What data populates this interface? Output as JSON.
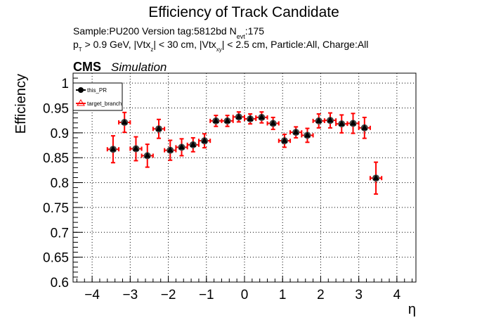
{
  "chart_data": {
    "type": "scatter",
    "title": "Efficiency of Track Candidate",
    "subtitle_line1": {
      "a": "Sample:PU200   Version tag:5812bd  N",
      "sub": "evt",
      "b": ":175"
    },
    "subtitle_line2": {
      "p": "p",
      "p_sub": "T",
      "a": " > 0.9 GeV, |Vtx",
      "z_sub": "z",
      "b": "| < 30 cm, |Vtx",
      "xy_sub": "xy",
      "c": "| < 2.5 cm, Particle:All, Charge:All"
    },
    "experiment_label": "CMS",
    "experiment_sublabel": "Simulation",
    "xlabel": "η",
    "ylabel": "Efficiency",
    "xlim": [
      -4.5,
      4.5
    ],
    "ylim": [
      0.6,
      1.02
    ],
    "x_ticks": [
      "−4",
      "−3",
      "−2",
      "−1",
      "0",
      "1",
      "2",
      "3",
      "4"
    ],
    "y_ticks": [
      "0.6",
      "0.65",
      "0.7",
      "0.75",
      "0.8",
      "0.85",
      "0.9",
      "0.95",
      "1"
    ],
    "grid": true,
    "legend_position": "top-left",
    "legend": [
      {
        "name": "this_PR",
        "marker": "circle",
        "color": "#000000"
      },
      {
        "name": "target_branch",
        "marker": "triangle-open",
        "color": "#ff0000"
      }
    ],
    "x_half_width": 0.15,
    "series": [
      {
        "name": "this_PR",
        "x": [
          -3.45,
          -3.15,
          -2.85,
          -2.55,
          -2.25,
          -1.95,
          -1.65,
          -1.35,
          -1.05,
          -0.75,
          -0.45,
          -0.15,
          0.15,
          0.45,
          0.75,
          1.05,
          1.35,
          1.65,
          1.95,
          2.25,
          2.55,
          2.85,
          3.15,
          3.45
        ],
        "y": [
          0.867,
          0.921,
          0.868,
          0.854,
          0.908,
          0.865,
          0.871,
          0.876,
          0.884,
          0.924,
          0.924,
          0.932,
          0.928,
          0.931,
          0.919,
          0.884,
          0.901,
          0.895,
          0.924,
          0.925,
          0.918,
          0.919,
          0.91,
          0.809
        ],
        "yerr": [
          0.027,
          0.02,
          0.024,
          0.023,
          0.019,
          0.02,
          0.017,
          0.014,
          0.014,
          0.011,
          0.011,
          0.01,
          0.01,
          0.011,
          0.012,
          0.013,
          0.011,
          0.014,
          0.014,
          0.015,
          0.018,
          0.02,
          0.021,
          0.032
        ]
      },
      {
        "name": "target_branch",
        "x": [
          -3.45,
          -3.15,
          -2.85,
          -2.55,
          -2.25,
          -1.95,
          -1.65,
          -1.35,
          -1.05,
          -0.75,
          -0.45,
          -0.15,
          0.15,
          0.45,
          0.75,
          1.05,
          1.35,
          1.65,
          1.95,
          2.25,
          2.55,
          2.85,
          3.15,
          3.45
        ],
        "y": [
          0.867,
          0.921,
          0.868,
          0.854,
          0.908,
          0.865,
          0.871,
          0.876,
          0.884,
          0.924,
          0.924,
          0.932,
          0.928,
          0.931,
          0.919,
          0.884,
          0.901,
          0.895,
          0.924,
          0.925,
          0.918,
          0.919,
          0.91,
          0.809
        ],
        "yerr": [
          0.027,
          0.02,
          0.024,
          0.023,
          0.019,
          0.02,
          0.017,
          0.014,
          0.014,
          0.011,
          0.011,
          0.01,
          0.01,
          0.011,
          0.012,
          0.013,
          0.011,
          0.014,
          0.014,
          0.015,
          0.018,
          0.02,
          0.021,
          0.032
        ]
      }
    ]
  }
}
